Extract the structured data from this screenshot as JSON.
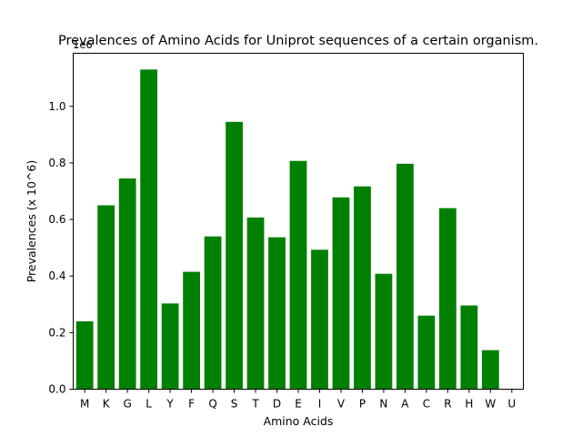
{
  "chart_data": {
    "type": "bar",
    "title": "Prevalences of Amino Acids for Uniprot sequences of a certain organism.",
    "xlabel": "Amino Acids",
    "ylabel": "Prevalences (x 10^6)",
    "offset_label": "1e6",
    "ylim": [
      0,
      1.1875
    ],
    "yticks": [
      "0.0",
      "0.2",
      "0.4",
      "0.6",
      "0.8",
      "1.0"
    ],
    "grid": false,
    "legend": "none",
    "bar_color": "#008000",
    "categories": [
      "M",
      "K",
      "G",
      "L",
      "Y",
      "F",
      "Q",
      "S",
      "T",
      "D",
      "E",
      "I",
      "V",
      "P",
      "N",
      "A",
      "C",
      "R",
      "H",
      "W",
      "U"
    ],
    "values": [
      0.24,
      0.65,
      0.745,
      1.13,
      0.303,
      0.415,
      0.54,
      0.945,
      0.607,
      0.537,
      0.807,
      0.493,
      0.678,
      0.717,
      0.408,
      0.797,
      0.26,
      0.64,
      0.296,
      0.138,
      0
    ]
  }
}
